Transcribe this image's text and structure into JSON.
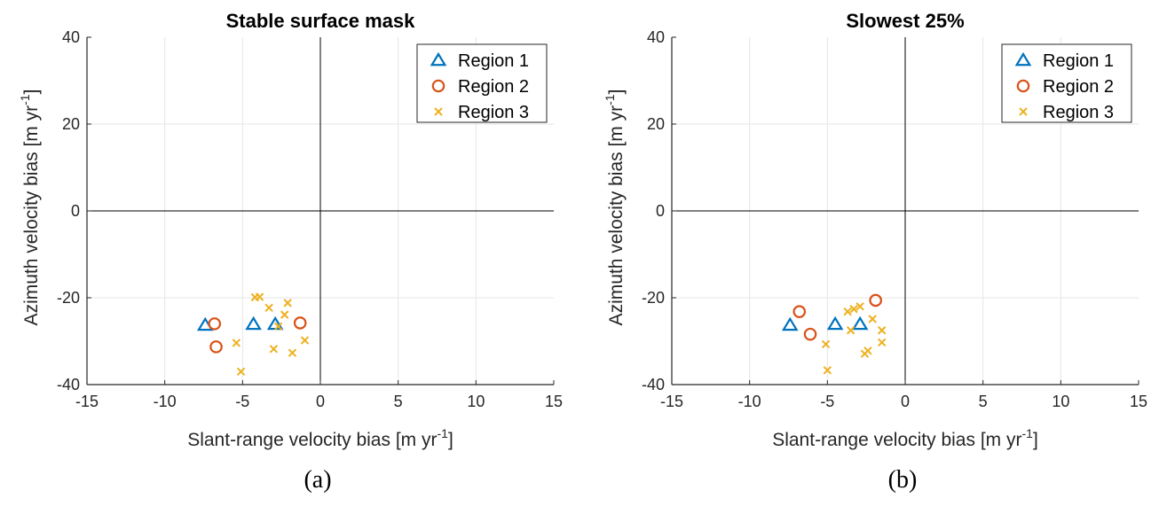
{
  "colors": {
    "region1": "#0072BD",
    "region2": "#D95319",
    "region3": "#EDB120",
    "axis": "#262626",
    "grid": "#E6E6E6",
    "zero_line": "#000000"
  },
  "captions": [
    "(a)",
    "(b)"
  ],
  "chart_data": [
    {
      "type": "scatter",
      "title": "Stable surface mask",
      "xlabel": "Slant-range velocity bias [m yr",
      "ylabel": "Azimuth velocity bias [m yr",
      "label_superscript": "-1",
      "label_suffix": "]",
      "xlim": [
        -15,
        15
      ],
      "ylim": [
        -40,
        40
      ],
      "xticks": [
        -15,
        -10,
        -5,
        0,
        5,
        10,
        15
      ],
      "yticks": [
        -40,
        -20,
        0,
        20,
        40
      ],
      "grid": true,
      "legend_position": "top-right",
      "series": [
        {
          "name": "Region 1",
          "marker": "triangle",
          "color": "#0072BD",
          "points": [
            [
              -7.4,
              -26.3
            ],
            [
              -4.3,
              -26.1
            ],
            [
              -2.9,
              -26.1
            ]
          ]
        },
        {
          "name": "Region 2",
          "marker": "circle",
          "color": "#D95319",
          "points": [
            [
              -6.8,
              -26.0
            ],
            [
              -6.7,
              -31.3
            ],
            [
              -1.3,
              -25.8
            ]
          ]
        },
        {
          "name": "Region 3",
          "marker": "x",
          "color": "#EDB120",
          "points": [
            [
              -4.2,
              -19.9
            ],
            [
              -3.9,
              -19.8
            ],
            [
              -3.3,
              -22.3
            ],
            [
              -2.1,
              -21.2
            ],
            [
              -2.3,
              -23.9
            ],
            [
              -2.7,
              -26.6
            ],
            [
              -5.4,
              -30.4
            ],
            [
              -3.0,
              -31.8
            ],
            [
              -1.0,
              -29.8
            ],
            [
              -1.8,
              -32.7
            ],
            [
              -5.1,
              -37.0
            ]
          ]
        }
      ]
    },
    {
      "type": "scatter",
      "title": "Slowest 25%",
      "xlabel": "Slant-range velocity bias [m yr",
      "ylabel": "Azimuth velocity bias [m yr",
      "label_superscript": "-1",
      "label_suffix": "]",
      "xlim": [
        -15,
        15
      ],
      "ylim": [
        -40,
        40
      ],
      "xticks": [
        -15,
        -10,
        -5,
        0,
        5,
        10,
        15
      ],
      "yticks": [
        -40,
        -20,
        0,
        20,
        40
      ],
      "grid": true,
      "legend_position": "top-right",
      "series": [
        {
          "name": "Region 1",
          "marker": "triangle",
          "color": "#0072BD",
          "points": [
            [
              -7.4,
              -26.3
            ],
            [
              -4.5,
              -26.1
            ],
            [
              -2.9,
              -26.1
            ]
          ]
        },
        {
          "name": "Region 2",
          "marker": "circle",
          "color": "#D95319",
          "points": [
            [
              -6.8,
              -23.2
            ],
            [
              -6.1,
              -28.4
            ],
            [
              -1.9,
              -20.6
            ]
          ]
        },
        {
          "name": "Region 3",
          "marker": "x",
          "color": "#EDB120",
          "points": [
            [
              -3.7,
              -23.2
            ],
            [
              -3.3,
              -22.6
            ],
            [
              -2.9,
              -22.0
            ],
            [
              -2.1,
              -24.9
            ],
            [
              -3.5,
              -27.5
            ],
            [
              -1.5,
              -27.5
            ],
            [
              -5.1,
              -30.7
            ],
            [
              -1.5,
              -30.3
            ],
            [
              -2.4,
              -32.2
            ],
            [
              -2.6,
              -32.9
            ],
            [
              -5.0,
              -36.7
            ]
          ]
        }
      ]
    }
  ]
}
